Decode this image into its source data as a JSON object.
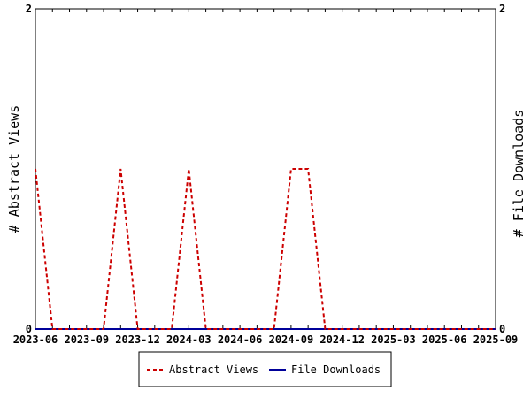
{
  "chart_data": {
    "type": "line",
    "ylabel_left": "# Abstract Views",
    "ylabel_right": "# File Downloads",
    "ylim": [
      0,
      2
    ],
    "y_ticks": [
      "0",
      "2"
    ],
    "x_ticks": [
      "2023-06",
      "2023-09",
      "2023-12",
      "2024-03",
      "2024-06",
      "2024-09",
      "2024-12",
      "2025-03",
      "2025-06",
      "2025-09"
    ],
    "x": [
      "2023-06",
      "2023-07",
      "2023-08",
      "2023-09",
      "2023-10",
      "2023-11",
      "2023-12",
      "2024-01",
      "2024-02",
      "2024-03",
      "2024-04",
      "2024-05",
      "2024-06",
      "2024-07",
      "2024-08",
      "2024-09",
      "2024-10",
      "2024-11",
      "2024-12",
      "2025-01",
      "2025-02",
      "2025-03",
      "2025-04",
      "2025-05",
      "2025-06",
      "2025-07",
      "2025-08",
      "2025-09"
    ],
    "series": [
      {
        "name": "Abstract Views",
        "color": "#cc0000",
        "style": "dashed",
        "axis": "left",
        "values": [
          1,
          0,
          0,
          0,
          0,
          1,
          0,
          0,
          0,
          1,
          0,
          0,
          0,
          0,
          0,
          1,
          1,
          0,
          0,
          0,
          0,
          0,
          0,
          0,
          0,
          0,
          0,
          0
        ]
      },
      {
        "name": "File Downloads",
        "color": "#000099",
        "style": "solid",
        "axis": "right",
        "values": [
          0,
          0,
          0,
          0,
          0,
          0,
          0,
          0,
          0,
          0,
          0,
          0,
          0,
          0,
          0,
          0,
          0,
          0,
          0,
          0,
          0,
          0,
          0,
          0,
          0,
          0,
          0,
          0
        ]
      }
    ],
    "legend_position": "bottom-center",
    "grid": false
  }
}
